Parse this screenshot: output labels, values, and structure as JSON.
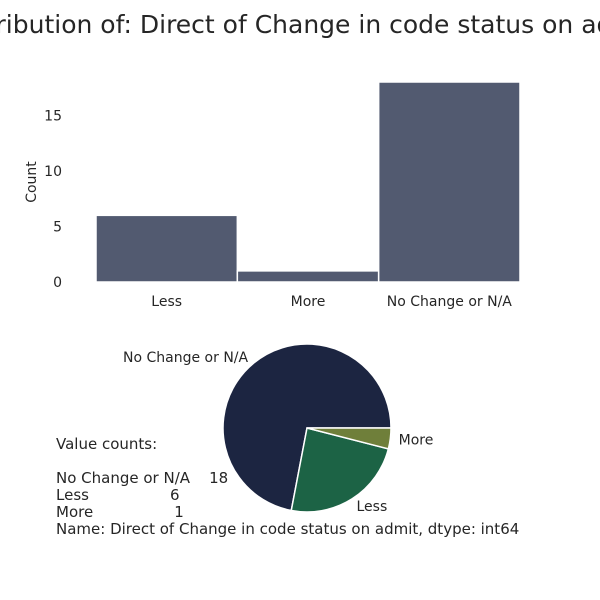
{
  "title": "Distribution of: Direct of Change in code status on admit",
  "chart_data": [
    {
      "type": "bar",
      "categories": [
        "Less",
        "More",
        "No Change or N/A"
      ],
      "values": [
        6,
        1,
        18
      ],
      "xlabel": "",
      "ylabel": "Count",
      "ylim": [
        0,
        18
      ],
      "yticks": [
        0,
        5,
        10,
        15
      ],
      "grid": false,
      "colors": {
        "bar": "#525a70",
        "edge": "#ffffff"
      }
    },
    {
      "type": "pie",
      "categories": [
        "No Change or N/A",
        "Less",
        "More"
      ],
      "values": [
        18,
        6,
        1
      ],
      "colors": [
        "#1c2541",
        "#1c6345",
        "#6f7f3a"
      ]
    }
  ],
  "value_counts": {
    "header": "Value counts:",
    "lines": [
      "No Change or N/A    18",
      "Less                 6",
      "More                 1"
    ],
    "footer": "Name: Direct of Change in code status on admit, dtype: int64"
  }
}
